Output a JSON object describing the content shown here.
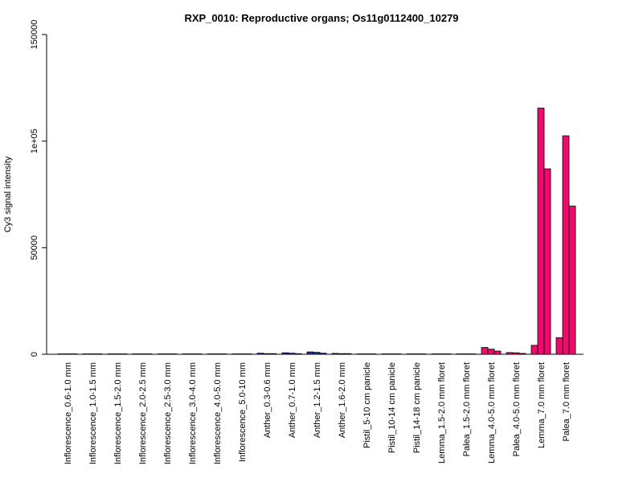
{
  "chart_data": {
    "type": "bar",
    "title": "RXP_0010: Reproductive organs; Os11g0112400_10279",
    "xlabel": "",
    "ylabel": "Cy3 signal intensity",
    "ylim": [
      0,
      150000
    ],
    "yticks": [
      0,
      50000,
      100000,
      150000
    ],
    "ytick_labels": [
      "0",
      "50000",
      "1e+05",
      "150000"
    ],
    "grid": false,
    "legend": "none",
    "categories": [
      "Inflorescence_0.6-1.0 mm",
      "Inflorescence_1.0-1.5 mm",
      "Inflorescence_1.5-2.0 mm",
      "Inflorescence_2.0-2.5 mm",
      "Inflorescence_2.5-3.0 mm",
      "Inflorescence_3.0-4.0 mm",
      "Inflorescence_4.0-5.0 mm",
      "Inflorescence_5.0-10 mm",
      "Anther_0.3-0.6 mm",
      "Anther_0.7-1.0 mm",
      "Anther_1.2-1.5 mm",
      "Anther_1.6-2.0 mm",
      "Pistil_5-10 cm panicle",
      "Pistil_10-14 cm panicle",
      "Pistil_14-18 cm panicle",
      "Lemma_1.5-2.0 mm floret",
      "Palea_1.5-2.0 mm floret",
      "Lemma_4.0-5.0 mm floret",
      "Palea_4.0-5.0 mm floret",
      "Lemma_7.0 mm floret",
      "Palea_7.0 mm floret"
    ],
    "series": [
      {
        "values": [
          150,
          100,
          100,
          150,
          100,
          100,
          150,
          100,
          500,
          700,
          1100,
          400,
          100,
          100,
          100,
          100,
          100,
          3200,
          800,
          4200,
          7800
        ]
      },
      {
        "values": [
          100,
          100,
          100,
          100,
          100,
          100,
          100,
          100,
          300,
          500,
          900,
          300,
          100,
          100,
          100,
          100,
          100,
          2400,
          700,
          115500,
          102500
        ]
      },
      {
        "values": [
          100,
          100,
          100,
          100,
          100,
          100,
          100,
          100,
          300,
          300,
          500,
          300,
          100,
          100,
          100,
          100,
          100,
          1500,
          400,
          87000,
          69500
        ]
      }
    ],
    "colors": {
      "inflorescence": "#9aa3ad",
      "anther": "#1532b8",
      "pistil": "#b9c4ce",
      "lemma_palea": "#ef0a6e",
      "outline": "#000000"
    },
    "group_color_keys": [
      "inflorescence",
      "inflorescence",
      "inflorescence",
      "inflorescence",
      "inflorescence",
      "inflorescence",
      "inflorescence",
      "inflorescence",
      "anther",
      "anther",
      "anther",
      "anther",
      "pistil",
      "pistil",
      "pistil",
      "lemma_palea",
      "lemma_palea",
      "lemma_palea",
      "lemma_palea",
      "lemma_palea",
      "lemma_palea"
    ]
  }
}
